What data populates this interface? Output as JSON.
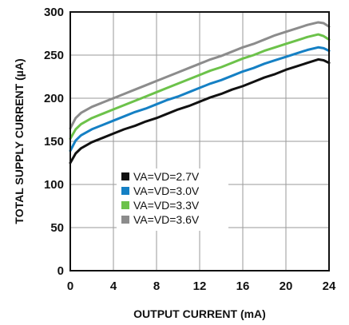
{
  "chart_data": {
    "type": "line",
    "title": "",
    "xlabel": "OUTPUT CURRENT (mA)",
    "ylabel": "TOTAL SUPPLY CURRENT (µA)",
    "xlim": [
      0,
      24
    ],
    "ylim": [
      0,
      300
    ],
    "x_ticks": [
      "0",
      "4",
      "8",
      "12",
      "16",
      "20",
      "24"
    ],
    "y_ticks": [
      "0",
      "50",
      "100",
      "150",
      "200",
      "250",
      "300"
    ],
    "grid": true,
    "legend_position": "center",
    "x": [
      0,
      0.5,
      1,
      2,
      3,
      4,
      5,
      6,
      7,
      8,
      9,
      10,
      11,
      12,
      13,
      14,
      15,
      16,
      17,
      18,
      19,
      20,
      21,
      22,
      23,
      23.5,
      24
    ],
    "series": [
      {
        "name": "VA=VD=2.7V",
        "color": "#111111",
        "values": [
          125,
          136,
          142,
          149,
          154,
          159,
          164,
          168,
          173,
          177,
          182,
          187,
          191,
          196,
          201,
          205,
          210,
          214,
          219,
          224,
          228,
          233,
          237,
          241,
          245,
          244,
          241
        ]
      },
      {
        "name": "VA=VD=3.0V",
        "color": "#1580c4",
        "values": [
          139,
          151,
          157,
          164,
          169,
          174,
          179,
          184,
          188,
          193,
          198,
          202,
          207,
          212,
          217,
          221,
          226,
          231,
          235,
          240,
          244,
          248,
          252,
          256,
          259,
          258,
          255
        ]
      },
      {
        "name": "VA=VD=3.3V",
        "color": "#6cc24a",
        "values": [
          153,
          164,
          170,
          177,
          182,
          187,
          192,
          197,
          202,
          207,
          212,
          217,
          222,
          227,
          232,
          236,
          241,
          246,
          250,
          255,
          259,
          263,
          267,
          271,
          274,
          272,
          268
        ]
      },
      {
        "name": "VA=VD=3.6V",
        "color": "#8c8c8c",
        "values": [
          165,
          177,
          183,
          190,
          195,
          200,
          205,
          210,
          215,
          220,
          225,
          230,
          235,
          240,
          245,
          249,
          254,
          259,
          263,
          268,
          273,
          277,
          281,
          285,
          288,
          287,
          283
        ]
      }
    ]
  }
}
